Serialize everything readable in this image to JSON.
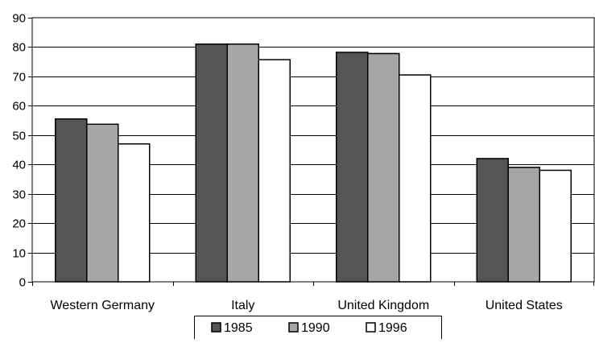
{
  "chart_data": {
    "type": "bar",
    "categories": [
      "Western Germany",
      "Italy",
      "United Kingdom",
      "United States"
    ],
    "series": [
      {
        "name": "1985",
        "values": [
          55.5,
          81,
          78.2,
          42
        ],
        "color": "#555555"
      },
      {
        "name": "1990",
        "values": [
          53.7,
          81,
          77.8,
          39
        ],
        "color": "#a6a6a6"
      },
      {
        "name": "1996",
        "values": [
          47,
          75.7,
          70.5,
          38
        ],
        "color": "#ffffff"
      }
    ],
    "ylim": [
      0,
      90
    ],
    "yticks": [
      0,
      10,
      20,
      30,
      40,
      50,
      60,
      70,
      80,
      90
    ],
    "grid": true,
    "legend": "bottom",
    "title": "",
    "xlabel": "",
    "ylabel": ""
  }
}
